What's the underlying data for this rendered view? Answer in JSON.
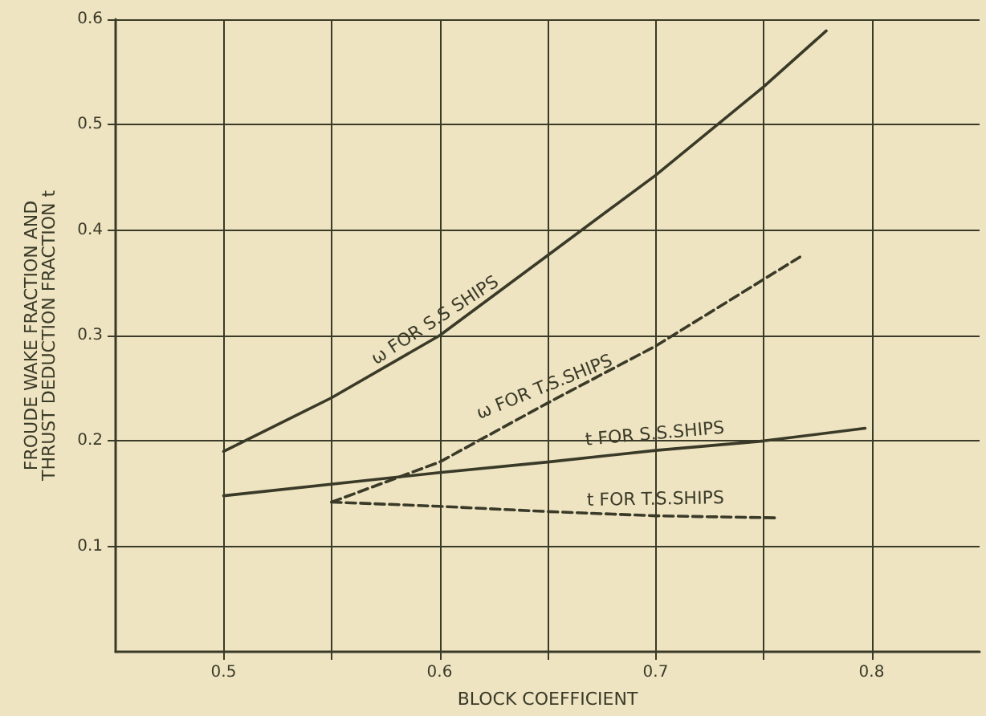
{
  "chart_data": {
    "type": "line",
    "xlabel": "BLOCK COEFFICIENT",
    "ylabel": "FROUDE WAKE FRACTION AND\nTHRUST DEDUCTION FRACTION t",
    "xlim": [
      0.45,
      0.85
    ],
    "xticks": [
      0.5,
      {
        "value": 0.55,
        "label": null
      },
      0.6,
      {
        "value": 0.65,
        "label": null
      },
      0.7,
      {
        "value": 0.75,
        "label": null
      },
      0.8
    ],
    "ylim": [
      0,
      0.6
    ],
    "yticks": [
      0.1,
      0.2,
      0.3,
      0.4,
      0.5,
      0.6
    ],
    "grid": true,
    "legend": false,
    "marker": "none",
    "series": [
      {
        "name": "ω FOR S.S SHIPS",
        "color": "#3a3a28",
        "line_style": "solid",
        "x": [
          0.5,
          0.55,
          0.6,
          0.65,
          0.7,
          0.75,
          0.779
        ],
        "values": [
          0.19,
          0.241,
          0.3,
          0.376,
          0.452,
          0.536,
          0.589
        ]
      },
      {
        "name": "ω FOR T.S.SHIPS",
        "color": "#3a3a28",
        "line_style": "dashed",
        "x": [
          0.55,
          0.6,
          0.65,
          0.7,
          0.768
        ],
        "values": [
          0.142,
          0.18,
          0.236,
          0.29,
          0.376
        ]
      },
      {
        "name": "t FOR S.S.SHIPS",
        "color": "#3a3a28",
        "line_style": "solid",
        "x": [
          0.5,
          0.6,
          0.65,
          0.7,
          0.75,
          0.797
        ],
        "values": [
          0.148,
          0.17,
          0.18,
          0.191,
          0.2,
          0.212
        ]
      },
      {
        "name": "t FOR T.S.SHIPS",
        "color": "#3a3a28",
        "line_style": "dashed",
        "x": [
          0.55,
          0.6,
          0.65,
          0.7,
          0.757
        ],
        "values": [
          0.142,
          0.138,
          0.133,
          0.129,
          0.127
        ]
      }
    ]
  }
}
